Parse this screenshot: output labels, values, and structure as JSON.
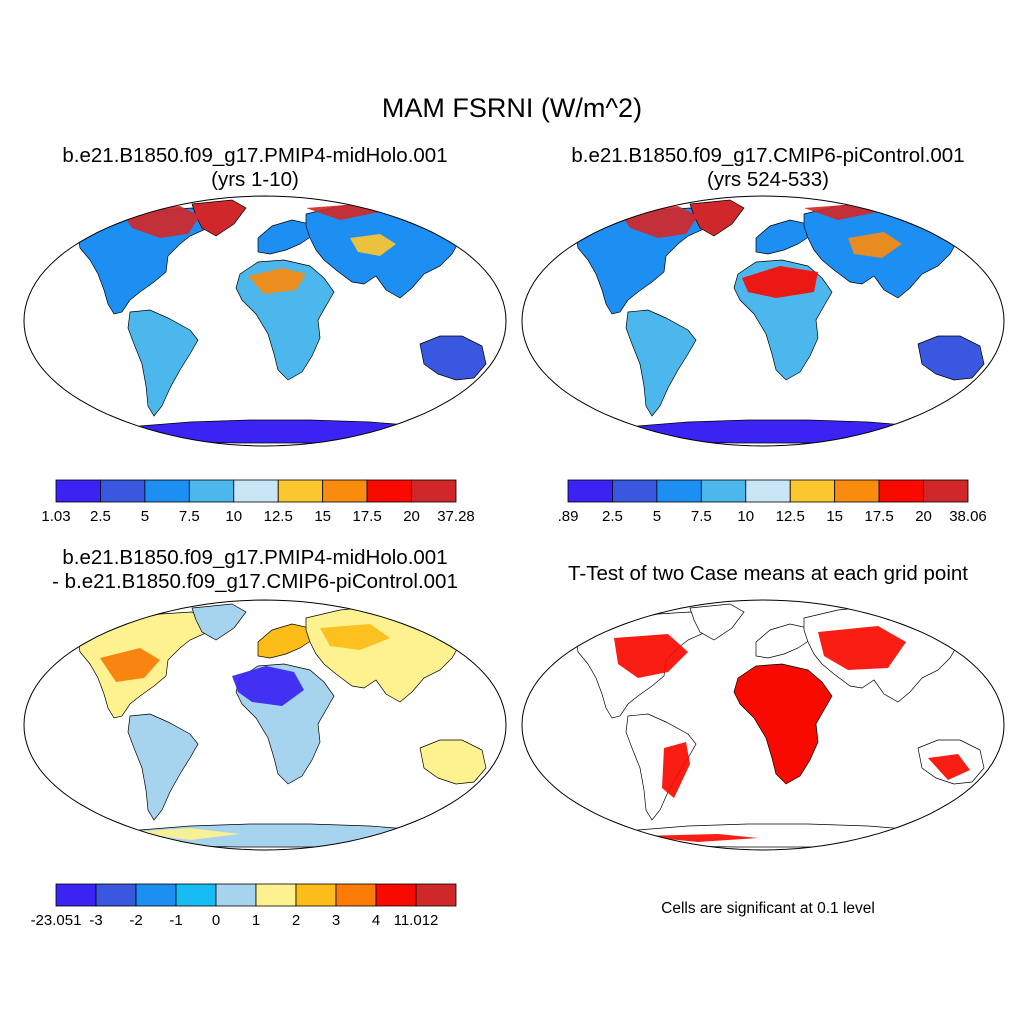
{
  "title": "MAM FSRNI (W/m^2)",
  "panels": [
    {
      "id": "midholo",
      "title_line1": "b.e21.B1850.f09_g17.PMIP4-midHolo.001",
      "title_line2": "(yrs 1-10)",
      "colorbar": {
        "colors": [
          "#3a23f3",
          "#3a57e0",
          "#1d8ff2",
          "#4bb7ec",
          "#c8e6f6",
          "#fcc72e",
          "#fa8b0e",
          "#f80a00",
          "#d0282a"
        ],
        "labels": [
          "1.03",
          "2.5",
          "5",
          "7.5",
          "10",
          "12.5",
          "15",
          "17.5",
          "20",
          "37.28"
        ]
      }
    },
    {
      "id": "picontrol",
      "title_line1": "b.e21.B1850.f09_g17.CMIP6-piControl.001",
      "title_line2": "(yrs 524-533)",
      "colorbar": {
        "colors": [
          "#3a23f3",
          "#3a57e0",
          "#1d8ff2",
          "#4bb7ec",
          "#c8e6f6",
          "#fcc72e",
          "#fa8b0e",
          "#f80a00",
          "#d0282a"
        ],
        "labels": [
          ".89",
          "2.5",
          "5",
          "7.5",
          "10",
          "12.5",
          "15",
          "17.5",
          "20",
          "38.06"
        ]
      }
    },
    {
      "id": "difference",
      "title_line1": "b.e21.B1850.f09_g17.PMIP4-midHolo.001",
      "title_line2": "- b.e21.B1850.f09_g17.CMIP6-piControl.001",
      "colorbar": {
        "colors": [
          "#3a23f3",
          "#3a57e0",
          "#1d8ff2",
          "#18bcf4",
          "#a6d3ee",
          "#fdf28f",
          "#fcbd18",
          "#fa7b05",
          "#f80a00",
          "#d0282a"
        ],
        "labels": [
          "-23.051",
          "-3",
          "-2",
          "-1",
          "0",
          "1",
          "2",
          "3",
          "4",
          "11.012"
        ]
      }
    },
    {
      "id": "ttest",
      "title_line1": "T-Test of two Case means at each grid point",
      "note": "Cells are significant at 0.1 level",
      "significant_color": "#f80a00"
    }
  ]
}
